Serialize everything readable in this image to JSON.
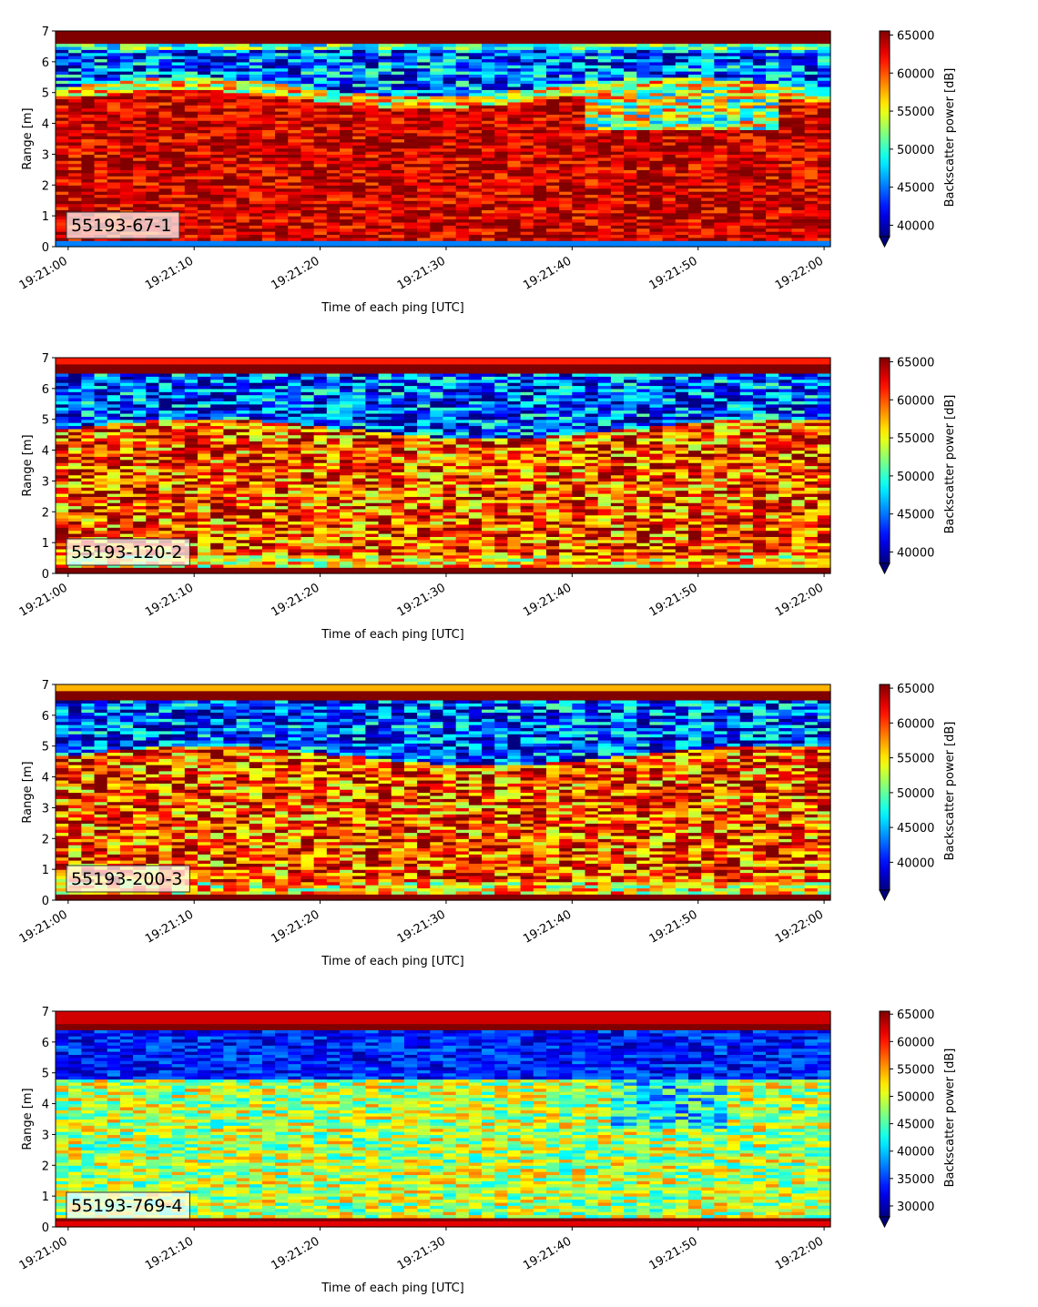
{
  "chart_data": [
    {
      "type": "heatmap",
      "label": "55193-67-1",
      "xlabel": "Time of each ping [UTC]",
      "ylabel": "Range [m]",
      "x_ticks": [
        "19:21:00",
        "19:21:10",
        "19:21:20",
        "19:21:30",
        "19:21:40",
        "19:21:50",
        "19:22:00"
      ],
      "y_ticks": [
        "0",
        "1",
        "2",
        "3",
        "4",
        "5",
        "6",
        "7"
      ],
      "ylim": [
        0,
        7
      ],
      "xlim": [
        "19:21:00",
        "19:22:00"
      ],
      "colorbar_label": "Backscatter power [dB]",
      "colorbar_ticks": [
        "40000",
        "45000",
        "50000",
        "55000",
        "60000",
        "65000"
      ],
      "color_range": [
        38500,
        65535
      ],
      "colormap": "jet"
    },
    {
      "type": "heatmap",
      "label": "55193-120-2",
      "xlabel": "Time of each ping [UTC]",
      "ylabel": "Range [m]",
      "x_ticks": [
        "19:21:00",
        "19:21:10",
        "19:21:20",
        "19:21:30",
        "19:21:40",
        "19:21:50",
        "19:22:00"
      ],
      "y_ticks": [
        "0",
        "1",
        "2",
        "3",
        "4",
        "5",
        "6",
        "7"
      ],
      "ylim": [
        0,
        7
      ],
      "xlim": [
        "19:21:00",
        "19:22:00"
      ],
      "colorbar_label": "Backscatter power [dB]",
      "colorbar_ticks": [
        "40000",
        "45000",
        "50000",
        "55000",
        "60000",
        "65000"
      ],
      "color_range": [
        38500,
        65535
      ],
      "colormap": "jet"
    },
    {
      "type": "heatmap",
      "label": "55193-200-3",
      "xlabel": "Time of each ping [UTC]",
      "ylabel": "Range [m]",
      "x_ticks": [
        "19:21:00",
        "19:21:10",
        "19:21:20",
        "19:21:30",
        "19:21:40",
        "19:21:50",
        "19:22:00"
      ],
      "y_ticks": [
        "0",
        "1",
        "2",
        "3",
        "4",
        "5",
        "6",
        "7"
      ],
      "ylim": [
        0,
        7
      ],
      "xlim": [
        "19:21:00",
        "19:22:00"
      ],
      "colorbar_label": "Backscatter power [dB]",
      "colorbar_ticks": [
        "40000",
        "45000",
        "50000",
        "55000",
        "60000",
        "65000"
      ],
      "color_range": [
        36000,
        65535
      ],
      "colormap": "jet"
    },
    {
      "type": "heatmap",
      "label": "55193-769-4",
      "xlabel": "Time of each ping [UTC]",
      "ylabel": "Range [m]",
      "x_ticks": [
        "19:21:00",
        "19:21:10",
        "19:21:20",
        "19:21:30",
        "19:21:40",
        "19:21:50",
        "19:22:00"
      ],
      "y_ticks": [
        "0",
        "1",
        "2",
        "3",
        "4",
        "5",
        "6",
        "7"
      ],
      "ylim": [
        0,
        7
      ],
      "xlim": [
        "19:21:00",
        "19:22:00"
      ],
      "colorbar_label": "Backscatter power [dB]",
      "colorbar_ticks": [
        "30000",
        "35000",
        "40000",
        "45000",
        "50000",
        "55000",
        "60000",
        "65000"
      ],
      "color_range": [
        28000,
        65535
      ],
      "colormap": "jet"
    }
  ]
}
